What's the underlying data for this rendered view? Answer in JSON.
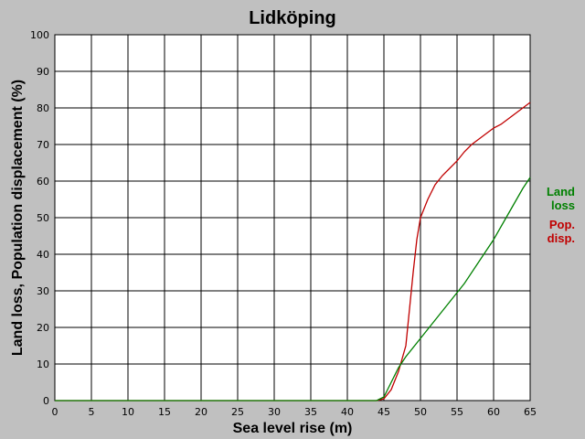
{
  "chart_data": {
    "type": "line",
    "title": "Lidköping",
    "xlabel": "Sea level rise (m)",
    "ylabel": "Land loss, Population displacement (%)",
    "xlim": [
      0,
      65
    ],
    "ylim": [
      0,
      100
    ],
    "x_ticks": [
      "0",
      "5",
      "10",
      "15",
      "20",
      "25",
      "30",
      "35",
      "40",
      "45",
      "50",
      "55",
      "60",
      "65"
    ],
    "y_ticks": [
      "0",
      "10",
      "20",
      "30",
      "40",
      "50",
      "60",
      "70",
      "80",
      "90",
      "100"
    ],
    "grid": true,
    "legend_position": "right",
    "series": [
      {
        "name": "Land loss",
        "label_lines": [
          "Land",
          "loss"
        ],
        "color": "#008000",
        "points": [
          [
            0,
            0
          ],
          [
            44,
            0
          ],
          [
            45,
            1
          ],
          [
            46,
            5
          ],
          [
            47,
            9
          ],
          [
            48,
            12
          ],
          [
            50,
            17
          ],
          [
            52,
            22
          ],
          [
            54,
            27
          ],
          [
            56,
            32
          ],
          [
            58,
            38
          ],
          [
            60,
            44
          ],
          [
            62,
            51
          ],
          [
            64,
            58
          ],
          [
            65,
            61
          ]
        ]
      },
      {
        "name": "Pop. disp.",
        "label_lines": [
          "Pop.",
          "disp."
        ],
        "color": "#c00000",
        "points": [
          [
            0,
            0
          ],
          [
            44,
            0
          ],
          [
            45,
            0.5
          ],
          [
            46,
            3
          ],
          [
            47,
            8
          ],
          [
            48,
            15
          ],
          [
            48.5,
            25
          ],
          [
            49,
            35
          ],
          [
            49.5,
            44
          ],
          [
            50,
            50
          ],
          [
            51,
            55
          ],
          [
            52,
            59
          ],
          [
            53,
            61.5
          ],
          [
            54,
            63.5
          ],
          [
            55,
            65.5
          ],
          [
            56,
            68
          ],
          [
            57,
            70
          ],
          [
            58,
            71.5
          ],
          [
            59,
            73
          ],
          [
            60,
            74.5
          ],
          [
            61,
            75.5
          ],
          [
            62,
            77
          ],
          [
            63,
            78.5
          ],
          [
            64,
            80
          ],
          [
            65,
            81.5
          ]
        ]
      }
    ]
  }
}
